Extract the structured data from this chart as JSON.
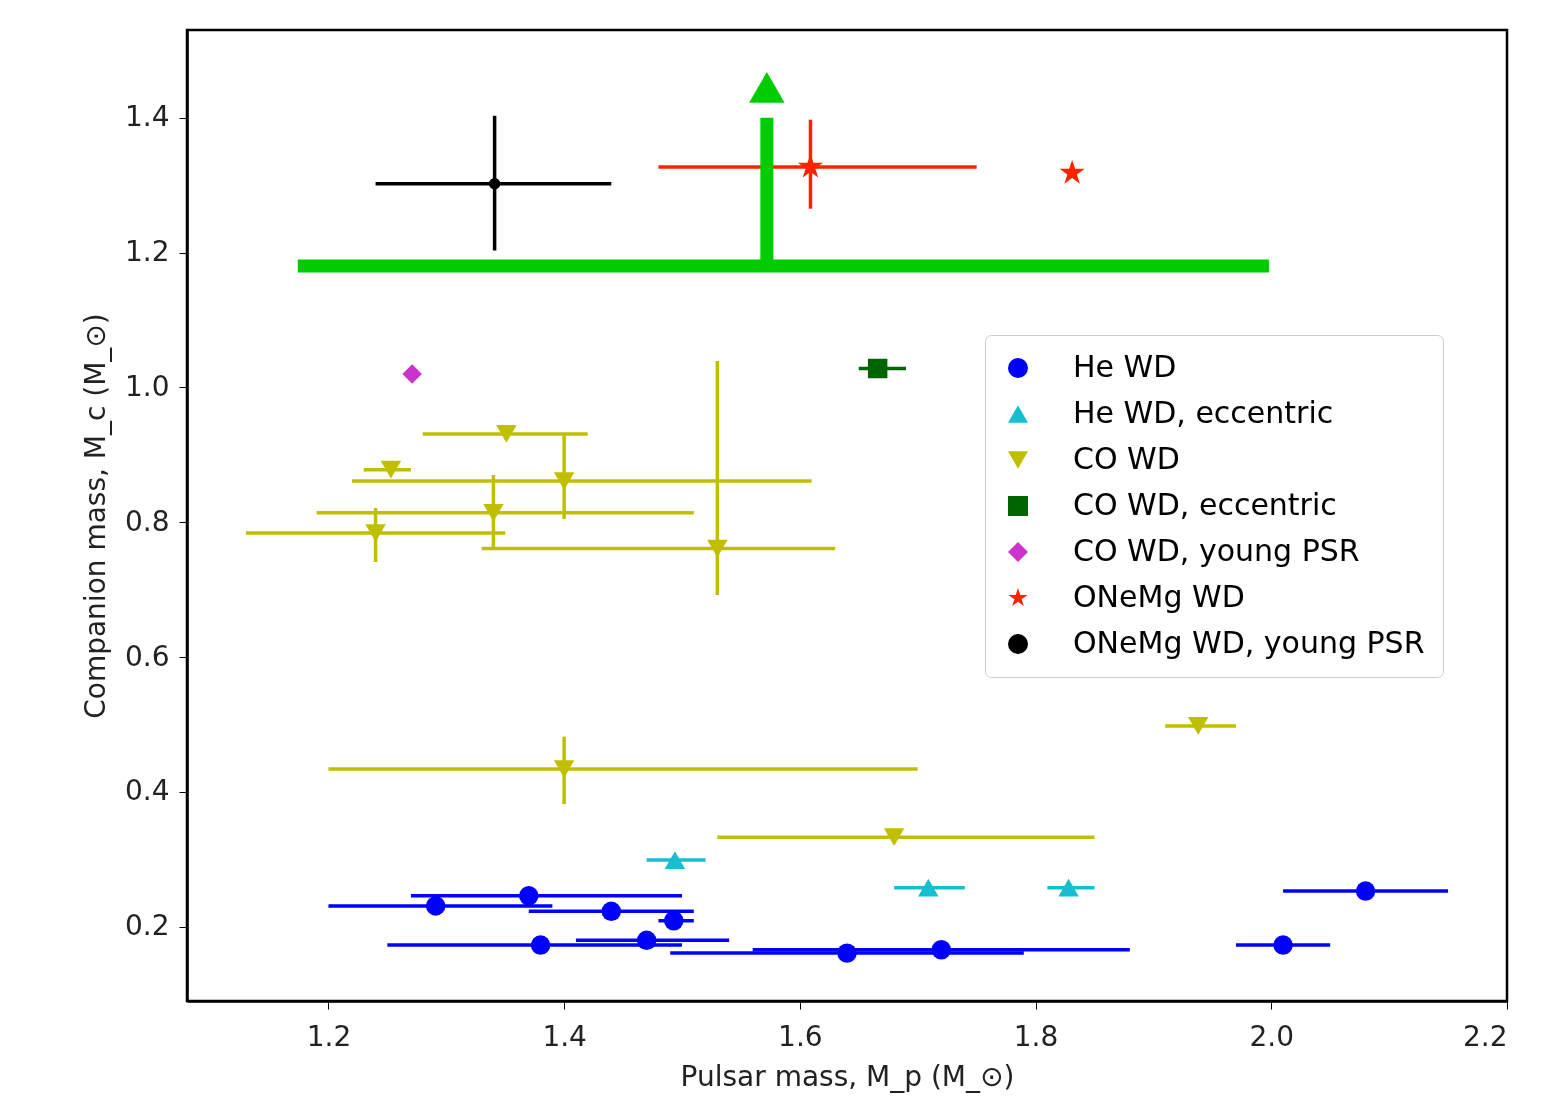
{
  "chart_data": {
    "type": "scatter",
    "xlabel": "Pulsar mass, M_p (M_⊙)",
    "ylabel": "Companion mass, M_c (M_⊙)",
    "xlim": [
      1.08,
      2.2
    ],
    "ylim": [
      0.09,
      1.53
    ],
    "xticks": [
      1.2,
      1.4,
      1.6,
      1.8,
      {
        "value": 2,
        "label": "2.0"
      },
      2.2
    ],
    "yticks": [
      0.2,
      0.4,
      0.6,
      0.8,
      {
        "value": 1,
        "label": "1.0"
      },
      1.2,
      1.4
    ],
    "grid": false,
    "legend": "right",
    "series": [
      {
        "name": "He WD",
        "color": "#0000ff",
        "marker": "circle",
        "x": [
          1.291,
          1.37,
          1.44,
          1.493,
          1.38,
          1.47,
          1.64,
          1.72,
          2.01,
          2.08
        ],
        "values": [
          0.231,
          0.246,
          0.223,
          0.209,
          0.173,
          0.18,
          0.161,
          0.166,
          0.173,
          0.253
        ],
        "xerrors": [
          [
            1.2,
            1.39
          ],
          [
            1.27,
            1.5
          ],
          [
            1.37,
            1.51
          ],
          [
            1.48,
            1.51
          ],
          [
            1.25,
            1.5
          ],
          [
            1.41,
            1.54
          ],
          [
            1.49,
            1.79
          ],
          [
            1.56,
            1.88
          ],
          [
            1.97,
            2.05
          ],
          [
            2.01,
            2.15
          ]
        ]
      },
      {
        "name": "He WD, eccentric",
        "color": "#17becf",
        "marker": "triangle",
        "x": [
          1.494,
          1.709,
          1.828
        ],
        "values": [
          0.299,
          0.258,
          0.258
        ],
        "xerrors": [
          [
            1.47,
            1.52
          ],
          [
            1.68,
            1.74
          ],
          [
            1.81,
            1.85
          ]
        ]
      },
      {
        "name": "CO WD",
        "color": "#bfbf00",
        "marker": "triangle-down",
        "x": [
          1.4,
          1.68,
          1.938,
          1.351,
          1.253,
          1.4,
          1.34,
          1.24,
          1.53
        ],
        "values": [
          0.434,
          0.333,
          0.498,
          0.931,
          0.878,
          0.861,
          0.814,
          0.784,
          0.761
        ],
        "xerrors": [
          [
            1.2,
            1.7
          ],
          [
            1.53,
            1.85
          ],
          [
            1.91,
            1.97
          ],
          [
            1.28,
            1.42
          ],
          [
            1.23,
            1.27
          ],
          [
            1.22,
            1.61
          ],
          [
            1.19,
            1.51
          ],
          [
            1.13,
            1.35
          ],
          [
            1.33,
            1.63
          ]
        ],
        "errors": [
          [
            0.382,
            0.482
          ],
          null,
          null,
          null,
          null,
          [
            0.805,
            0.93
          ],
          [
            0.761,
            0.87
          ],
          [
            0.741,
            0.821
          ],
          [
            0.692,
            1.039
          ]
        ]
      },
      {
        "name": "CO WD, eccentric",
        "color": "#006400",
        "marker": "square",
        "x": [
          1.666
        ],
        "values": [
          1.028
        ],
        "xerrors": [
          [
            1.65,
            1.69
          ]
        ]
      },
      {
        "name": "CO WD, young PSR",
        "color": "#cc33cc",
        "marker": "diamond",
        "x": [
          1.271
        ],
        "values": [
          1.02
        ]
      },
      {
        "name": "ONeMg WD",
        "color": "#ff2200",
        "marker": "star",
        "x": [
          1.609,
          1.831
        ],
        "values": [
          1.327,
          1.318
        ],
        "xerrors": [
          [
            1.48,
            1.75
          ],
          null
        ],
        "errors": [
          [
            1.265,
            1.397
          ],
          null
        ]
      },
      {
        "name": "ONeMg WD, young PSR",
        "color": "#000000",
        "marker": "point",
        "x": [
          1.341
        ],
        "values": [
          1.302
        ],
        "xerrors": [
          [
            1.24,
            1.44
          ]
        ],
        "errors": [
          [
            1.203,
            1.403
          ]
        ]
      },
      {
        "type": "line",
        "color": "#00cc00",
        "x": [
          1.174,
          1.998
        ],
        "values": [
          1.18,
          1.18
        ]
      },
      {
        "type": "line",
        "color": "#00cc00",
        "x": [
          1.572,
          1.572
        ],
        "values": [
          1.18,
          1.4
        ]
      },
      {
        "type": "scatter",
        "color": "#00cc00",
        "marker": "triangle",
        "x": [
          1.572
        ],
        "values": [
          1.445
        ]
      }
    ]
  }
}
